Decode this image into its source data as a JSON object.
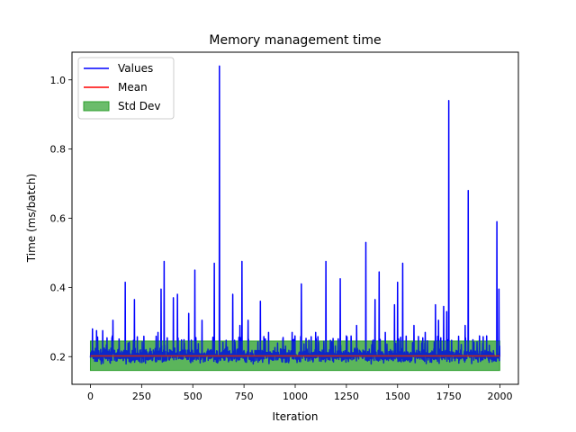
{
  "chart_data": {
    "type": "line",
    "title": "Memory management time",
    "xlabel": "Iteration",
    "ylabel": "Time (ms/batch)",
    "xlim": [
      -90,
      2090
    ],
    "ylim": [
      0.12,
      1.08
    ],
    "xticks": [
      0,
      250,
      500,
      750,
      1000,
      1250,
      1500,
      1750,
      2000
    ],
    "yticks": [
      0.2,
      0.4,
      0.6,
      0.8,
      1.0
    ],
    "xtick_labels": [
      "0",
      "250",
      "500",
      "750",
      "1000",
      "1250",
      "1500",
      "1750",
      "2000"
    ],
    "ytick_labels": [
      "0.2",
      "0.4",
      "0.6",
      "0.8",
      "1.0"
    ],
    "grid": false,
    "legend_position": "top-left",
    "legend": [
      {
        "label": "Values",
        "kind": "line",
        "color": "#0000ff"
      },
      {
        "label": "Mean",
        "kind": "line",
        "color": "#ff0000"
      },
      {
        "label": "Std Dev",
        "kind": "patch",
        "color": "#2ca02c"
      }
    ],
    "colors": {
      "values": "#0000ff",
      "mean": "#ff0000",
      "std_fill": "#2ca02c"
    },
    "n_points": 2000,
    "mean": 0.202,
    "std_band": [
      0.16,
      0.245
    ],
    "baseline_range": [
      0.175,
      0.23
    ],
    "spikes": [
      {
        "x": 10,
        "y": 0.28
      },
      {
        "x": 30,
        "y": 0.275
      },
      {
        "x": 60,
        "y": 0.275
      },
      {
        "x": 110,
        "y": 0.305
      },
      {
        "x": 170,
        "y": 0.415
      },
      {
        "x": 215,
        "y": 0.365
      },
      {
        "x": 330,
        "y": 0.27
      },
      {
        "x": 345,
        "y": 0.395
      },
      {
        "x": 360,
        "y": 0.475
      },
      {
        "x": 405,
        "y": 0.37
      },
      {
        "x": 425,
        "y": 0.38
      },
      {
        "x": 480,
        "y": 0.325
      },
      {
        "x": 510,
        "y": 0.45
      },
      {
        "x": 545,
        "y": 0.305
      },
      {
        "x": 605,
        "y": 0.47
      },
      {
        "x": 630,
        "y": 1.04
      },
      {
        "x": 695,
        "y": 0.38
      },
      {
        "x": 730,
        "y": 0.29
      },
      {
        "x": 740,
        "y": 0.475
      },
      {
        "x": 770,
        "y": 0.305
      },
      {
        "x": 830,
        "y": 0.36
      },
      {
        "x": 870,
        "y": 0.27
      },
      {
        "x": 940,
        "y": 0.25
      },
      {
        "x": 985,
        "y": 0.27
      },
      {
        "x": 1030,
        "y": 0.41
      },
      {
        "x": 1100,
        "y": 0.27
      },
      {
        "x": 1150,
        "y": 0.475
      },
      {
        "x": 1220,
        "y": 0.425
      },
      {
        "x": 1250,
        "y": 0.26
      },
      {
        "x": 1300,
        "y": 0.29
      },
      {
        "x": 1345,
        "y": 0.53
      },
      {
        "x": 1390,
        "y": 0.365
      },
      {
        "x": 1410,
        "y": 0.445
      },
      {
        "x": 1440,
        "y": 0.27
      },
      {
        "x": 1485,
        "y": 0.35
      },
      {
        "x": 1500,
        "y": 0.415
      },
      {
        "x": 1525,
        "y": 0.47
      },
      {
        "x": 1580,
        "y": 0.29
      },
      {
        "x": 1635,
        "y": 0.27
      },
      {
        "x": 1685,
        "y": 0.35
      },
      {
        "x": 1700,
        "y": 0.305
      },
      {
        "x": 1725,
        "y": 0.345
      },
      {
        "x": 1740,
        "y": 0.33
      },
      {
        "x": 1750,
        "y": 0.94
      },
      {
        "x": 1830,
        "y": 0.29
      },
      {
        "x": 1845,
        "y": 0.68
      },
      {
        "x": 1900,
        "y": 0.26
      },
      {
        "x": 1935,
        "y": 0.26
      },
      {
        "x": 1985,
        "y": 0.59
      },
      {
        "x": 1995,
        "y": 0.395
      }
    ]
  }
}
